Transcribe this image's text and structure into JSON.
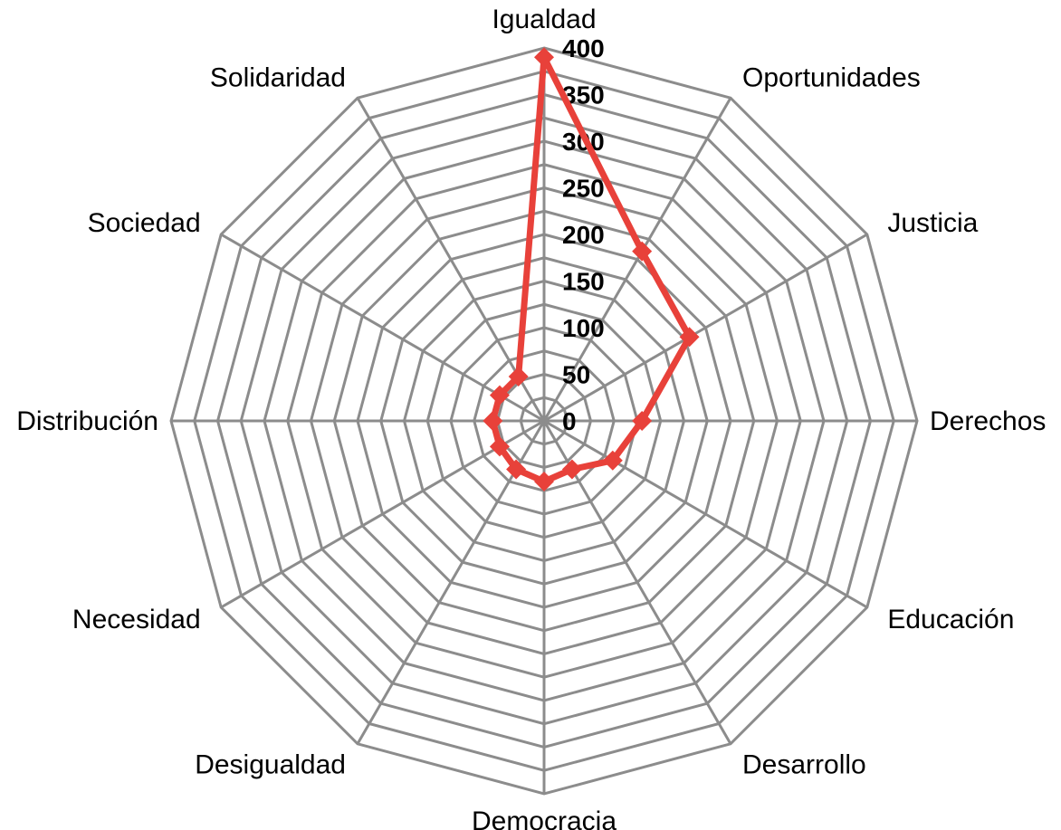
{
  "chart_data": {
    "type": "radar",
    "categories": [
      "Igualdad",
      "Oportunidades",
      "Justicia",
      "Derechos",
      "Educación",
      "Desarrollo",
      "Democracia",
      "Desigualdad",
      "Necesidad",
      "Distribución",
      "Sociedad",
      "Solidaridad"
    ],
    "series": [
      {
        "values": [
          390,
          210,
          180,
          105,
          85,
          60,
          65,
          60,
          55,
          55,
          55,
          55
        ],
        "color": "#e8413a"
      }
    ],
    "r_range": [
      0,
      400
    ],
    "ticks": [
      0,
      50,
      100,
      150,
      200,
      250,
      300,
      350,
      400
    ],
    "tick_labels": [
      "0",
      "50",
      "100",
      "150",
      "200",
      "250",
      "300",
      "350",
      "400"
    ],
    "grid": true,
    "grid_color": "#8c8c8c",
    "legend": "none",
    "title": ""
  }
}
